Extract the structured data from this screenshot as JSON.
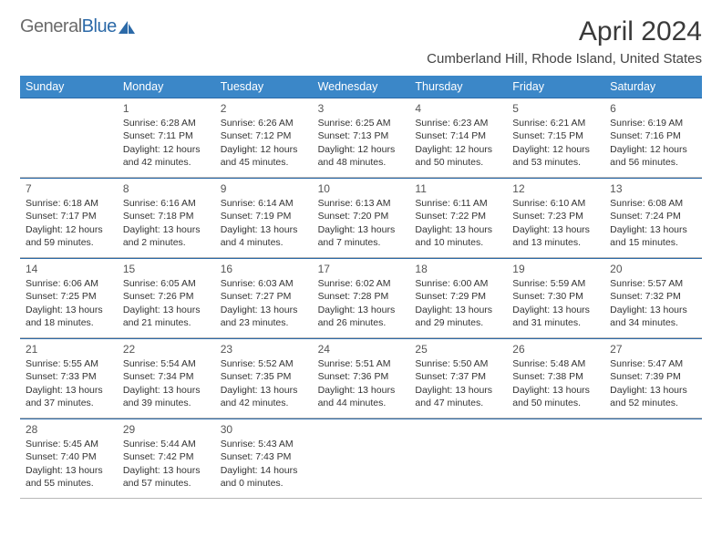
{
  "logo": {
    "word1": "General",
    "word2": "Blue",
    "icon_color": "#2c6aa8"
  },
  "title": "April 2024",
  "location": "Cumberland Hill, Rhode Island, United States",
  "colors": {
    "header_bg": "#3b87c8",
    "rule_top": "#2c6aa8",
    "rule_bot": "#b8b8b8",
    "text": "#333333"
  },
  "weekdays": [
    "Sunday",
    "Monday",
    "Tuesday",
    "Wednesday",
    "Thursday",
    "Friday",
    "Saturday"
  ],
  "columns": 7,
  "type": "table",
  "weeks": [
    [
      null,
      {
        "n": "1",
        "sr": "Sunrise: 6:28 AM",
        "ss": "Sunset: 7:11 PM",
        "dl1": "Daylight: 12 hours",
        "dl2": "and 42 minutes."
      },
      {
        "n": "2",
        "sr": "Sunrise: 6:26 AM",
        "ss": "Sunset: 7:12 PM",
        "dl1": "Daylight: 12 hours",
        "dl2": "and 45 minutes."
      },
      {
        "n": "3",
        "sr": "Sunrise: 6:25 AM",
        "ss": "Sunset: 7:13 PM",
        "dl1": "Daylight: 12 hours",
        "dl2": "and 48 minutes."
      },
      {
        "n": "4",
        "sr": "Sunrise: 6:23 AM",
        "ss": "Sunset: 7:14 PM",
        "dl1": "Daylight: 12 hours",
        "dl2": "and 50 minutes."
      },
      {
        "n": "5",
        "sr": "Sunrise: 6:21 AM",
        "ss": "Sunset: 7:15 PM",
        "dl1": "Daylight: 12 hours",
        "dl2": "and 53 minutes."
      },
      {
        "n": "6",
        "sr": "Sunrise: 6:19 AM",
        "ss": "Sunset: 7:16 PM",
        "dl1": "Daylight: 12 hours",
        "dl2": "and 56 minutes."
      }
    ],
    [
      {
        "n": "7",
        "sr": "Sunrise: 6:18 AM",
        "ss": "Sunset: 7:17 PM",
        "dl1": "Daylight: 12 hours",
        "dl2": "and 59 minutes."
      },
      {
        "n": "8",
        "sr": "Sunrise: 6:16 AM",
        "ss": "Sunset: 7:18 PM",
        "dl1": "Daylight: 13 hours",
        "dl2": "and 2 minutes."
      },
      {
        "n": "9",
        "sr": "Sunrise: 6:14 AM",
        "ss": "Sunset: 7:19 PM",
        "dl1": "Daylight: 13 hours",
        "dl2": "and 4 minutes."
      },
      {
        "n": "10",
        "sr": "Sunrise: 6:13 AM",
        "ss": "Sunset: 7:20 PM",
        "dl1": "Daylight: 13 hours",
        "dl2": "and 7 minutes."
      },
      {
        "n": "11",
        "sr": "Sunrise: 6:11 AM",
        "ss": "Sunset: 7:22 PM",
        "dl1": "Daylight: 13 hours",
        "dl2": "and 10 minutes."
      },
      {
        "n": "12",
        "sr": "Sunrise: 6:10 AM",
        "ss": "Sunset: 7:23 PM",
        "dl1": "Daylight: 13 hours",
        "dl2": "and 13 minutes."
      },
      {
        "n": "13",
        "sr": "Sunrise: 6:08 AM",
        "ss": "Sunset: 7:24 PM",
        "dl1": "Daylight: 13 hours",
        "dl2": "and 15 minutes."
      }
    ],
    [
      {
        "n": "14",
        "sr": "Sunrise: 6:06 AM",
        "ss": "Sunset: 7:25 PM",
        "dl1": "Daylight: 13 hours",
        "dl2": "and 18 minutes."
      },
      {
        "n": "15",
        "sr": "Sunrise: 6:05 AM",
        "ss": "Sunset: 7:26 PM",
        "dl1": "Daylight: 13 hours",
        "dl2": "and 21 minutes."
      },
      {
        "n": "16",
        "sr": "Sunrise: 6:03 AM",
        "ss": "Sunset: 7:27 PM",
        "dl1": "Daylight: 13 hours",
        "dl2": "and 23 minutes."
      },
      {
        "n": "17",
        "sr": "Sunrise: 6:02 AM",
        "ss": "Sunset: 7:28 PM",
        "dl1": "Daylight: 13 hours",
        "dl2": "and 26 minutes."
      },
      {
        "n": "18",
        "sr": "Sunrise: 6:00 AM",
        "ss": "Sunset: 7:29 PM",
        "dl1": "Daylight: 13 hours",
        "dl2": "and 29 minutes."
      },
      {
        "n": "19",
        "sr": "Sunrise: 5:59 AM",
        "ss": "Sunset: 7:30 PM",
        "dl1": "Daylight: 13 hours",
        "dl2": "and 31 minutes."
      },
      {
        "n": "20",
        "sr": "Sunrise: 5:57 AM",
        "ss": "Sunset: 7:32 PM",
        "dl1": "Daylight: 13 hours",
        "dl2": "and 34 minutes."
      }
    ],
    [
      {
        "n": "21",
        "sr": "Sunrise: 5:55 AM",
        "ss": "Sunset: 7:33 PM",
        "dl1": "Daylight: 13 hours",
        "dl2": "and 37 minutes."
      },
      {
        "n": "22",
        "sr": "Sunrise: 5:54 AM",
        "ss": "Sunset: 7:34 PM",
        "dl1": "Daylight: 13 hours",
        "dl2": "and 39 minutes."
      },
      {
        "n": "23",
        "sr": "Sunrise: 5:52 AM",
        "ss": "Sunset: 7:35 PM",
        "dl1": "Daylight: 13 hours",
        "dl2": "and 42 minutes."
      },
      {
        "n": "24",
        "sr": "Sunrise: 5:51 AM",
        "ss": "Sunset: 7:36 PM",
        "dl1": "Daylight: 13 hours",
        "dl2": "and 44 minutes."
      },
      {
        "n": "25",
        "sr": "Sunrise: 5:50 AM",
        "ss": "Sunset: 7:37 PM",
        "dl1": "Daylight: 13 hours",
        "dl2": "and 47 minutes."
      },
      {
        "n": "26",
        "sr": "Sunrise: 5:48 AM",
        "ss": "Sunset: 7:38 PM",
        "dl1": "Daylight: 13 hours",
        "dl2": "and 50 minutes."
      },
      {
        "n": "27",
        "sr": "Sunrise: 5:47 AM",
        "ss": "Sunset: 7:39 PM",
        "dl1": "Daylight: 13 hours",
        "dl2": "and 52 minutes."
      }
    ],
    [
      {
        "n": "28",
        "sr": "Sunrise: 5:45 AM",
        "ss": "Sunset: 7:40 PM",
        "dl1": "Daylight: 13 hours",
        "dl2": "and 55 minutes."
      },
      {
        "n": "29",
        "sr": "Sunrise: 5:44 AM",
        "ss": "Sunset: 7:42 PM",
        "dl1": "Daylight: 13 hours",
        "dl2": "and 57 minutes."
      },
      {
        "n": "30",
        "sr": "Sunrise: 5:43 AM",
        "ss": "Sunset: 7:43 PM",
        "dl1": "Daylight: 14 hours",
        "dl2": "and 0 minutes."
      },
      null,
      null,
      null,
      null
    ]
  ]
}
